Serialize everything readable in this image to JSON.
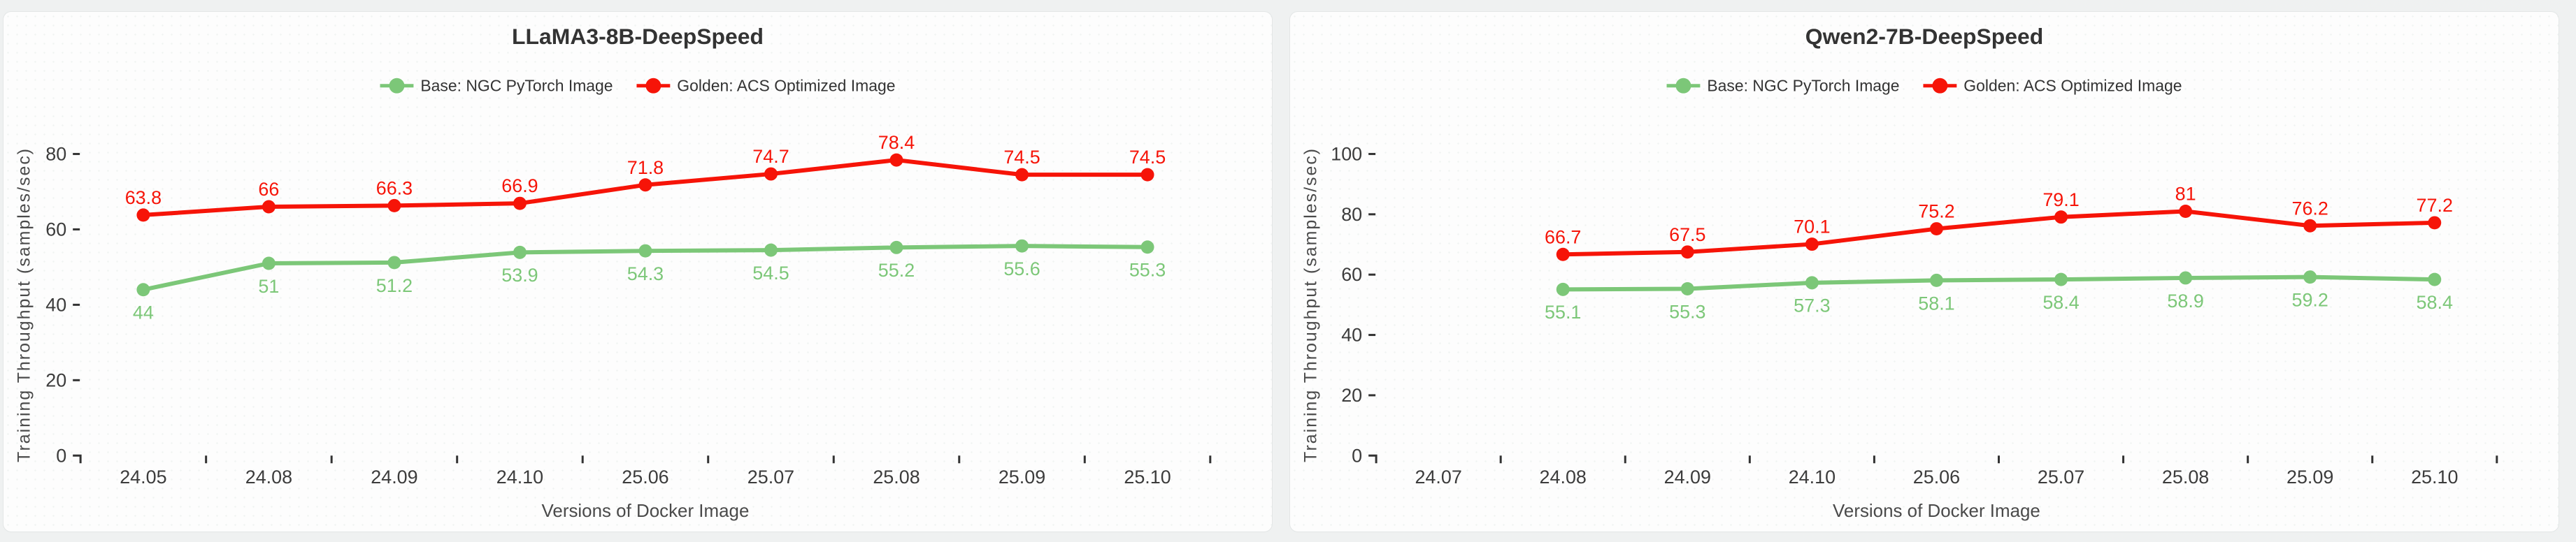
{
  "page": {
    "background": "#eff1f1",
    "card_background": "#fdfdfd"
  },
  "colors": {
    "base_green": "#7cc778",
    "golden_red": "#f61408",
    "title_text": "#333333",
    "tick_text": "#3c3c3c",
    "axis_name_text": "#4a4a4a",
    "tick_mark": "#333333"
  },
  "chart_data": [
    {
      "type": "line",
      "title": "LLaMA3-8B-DeepSpeed",
      "xlabel": "Versions of Docker Image",
      "ylabel": "Training Throughput (samples/sec)",
      "categories": [
        "24.05",
        "24.08",
        "24.09",
        "24.10",
        "25.06",
        "25.07",
        "25.08",
        "25.09",
        "25.10"
      ],
      "ylim": [
        0,
        80
      ],
      "ytick_interval": 20,
      "grid": false,
      "legend_position": "top-center",
      "series": [
        {
          "name": "Base: NGC PyTorch Image",
          "color": "#7cc778",
          "label_position": "below",
          "values": [
            44,
            51,
            51.2,
            53.9,
            54.3,
            54.5,
            55.2,
            55.6,
            55.3
          ]
        },
        {
          "name": "Golden: ACS Optimized Image",
          "color": "#f61408",
          "label_position": "above",
          "values": [
            63.8,
            66,
            66.3,
            66.9,
            71.8,
            74.7,
            78.4,
            74.5,
            74.5
          ]
        }
      ]
    },
    {
      "type": "line",
      "title": "Qwen2-7B-DeepSpeed",
      "xlabel": "Versions of Docker Image",
      "ylabel": "Training Throughput (samples/sec)",
      "categories": [
        "24.07",
        "24.08",
        "24.09",
        "24.10",
        "25.06",
        "25.07",
        "25.08",
        "25.09",
        "25.10"
      ],
      "ylim": [
        0,
        100
      ],
      "ytick_interval": 20,
      "grid": false,
      "legend_position": "top-center",
      "series": [
        {
          "name": "Base: NGC PyTorch Image",
          "color": "#7cc778",
          "label_position": "below",
          "values": [
            null,
            55.1,
            55.3,
            57.3,
            58.1,
            58.4,
            58.9,
            59.2,
            58.4
          ]
        },
        {
          "name": "Golden: ACS Optimized Image",
          "color": "#f61408",
          "label_position": "above",
          "values": [
            null,
            66.7,
            67.5,
            70.1,
            75.2,
            79.1,
            81,
            76.2,
            77.2
          ]
        }
      ]
    }
  ]
}
